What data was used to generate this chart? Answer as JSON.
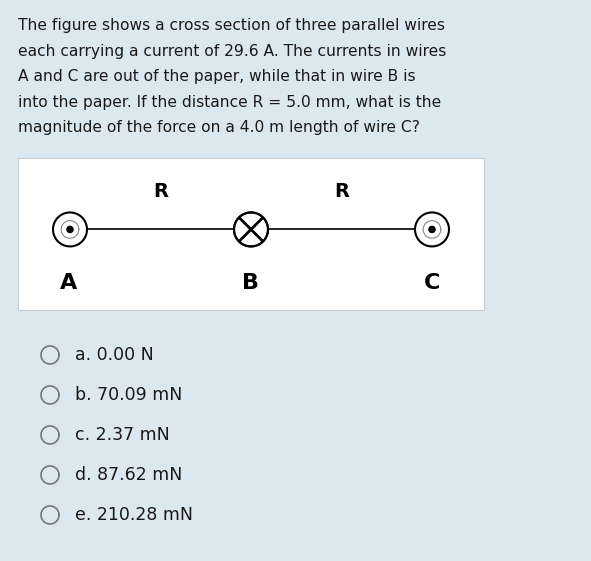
{
  "background_color": "#dce8f0",
  "text_color": "#1a1a1a",
  "question_text": "The figure shows a cross section of three parallel wires\neach carrying a current of 29.6 A. The currents in wires\nA and C are out of the paper, while that in wire B is\ninto the paper. If the distance R = 5.0 mm, what is the\nmagnitude of the force on a 4.0 m length of wire C?",
  "diagram_bg": "#ffffff",
  "choices": [
    "a. 0.00 N",
    "b. 70.09 mN",
    "c. 2.37 mN",
    "d. 87.62 mN",
    "e. 210.28 mN"
  ],
  "fig_width": 5.91,
  "fig_height": 5.61,
  "question_fontsize": 11.2,
  "choice_fontsize": 12.5
}
